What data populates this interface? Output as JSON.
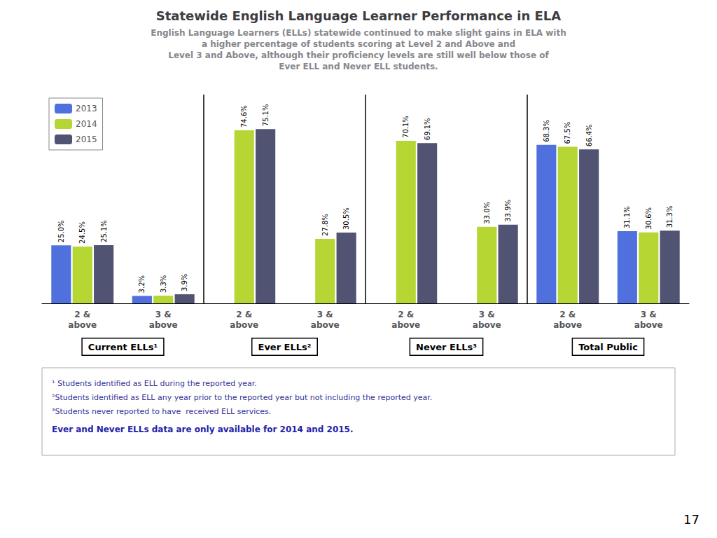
{
  "chart_data": {
    "type": "bar",
    "title": "Statewide English Language Learner Performance in ELA",
    "subtitle": "English Language Learners (ELLs) statewide continued to make slight gains in ELA with\na higher percentage of students scoring at Level 2 and Above and\nLevel 3 and Above, although their proficiency levels are still well below those of\nEver ELL and Never ELL students.",
    "categories": [
      "2 &\nabove",
      "3 &\nabove",
      "2 &\nabove",
      "3 &\nabove",
      "2 &\nabove",
      "3 &\nabove",
      "2 &\nabove",
      "3 &\nabove"
    ],
    "groups": [
      "Current ELLs¹",
      "Ever ELLs²",
      "Never ELLs³",
      "Total Public"
    ],
    "series": [
      {
        "name": "2013",
        "values": [
          25.0,
          3.2,
          null,
          null,
          null,
          null,
          68.3,
          31.1
        ],
        "value_labels": [
          "25.0%",
          "3.2%",
          null,
          null,
          null,
          null,
          "68.3%",
          "31.1%"
        ]
      },
      {
        "name": "2014",
        "values": [
          24.5,
          3.3,
          74.6,
          27.8,
          70.1,
          33.0,
          67.5,
          30.6
        ],
        "value_labels": [
          "24.5%",
          "3.3%",
          "74.6%",
          "27.8%",
          "70.1%",
          "33.0%",
          "67.5%",
          "30.6%"
        ]
      },
      {
        "name": "2015",
        "values": [
          25.1,
          3.9,
          75.1,
          30.5,
          69.1,
          33.9,
          66.4,
          31.3
        ],
        "value_labels": [
          "25.1%",
          "3.9%",
          "75.1%",
          "30.5%",
          "69.1%",
          "33.9%",
          "66.4%",
          "31.3%"
        ]
      }
    ],
    "ylim": [
      0,
      90
    ],
    "legend": "upper left",
    "data_labels": true,
    "tick_labels": "x",
    "grid": false,
    "annotations": [
      "¹ Students identified as ELL during the reported year.",
      "²Students identified as ELL any year prior to the reported year but not including the reported year.",
      "³Students never reported to have  received ELL services.",
      "Ever and Never ELLs data are only available for 2014 and 2015.",
      "17"
    ]
  }
}
